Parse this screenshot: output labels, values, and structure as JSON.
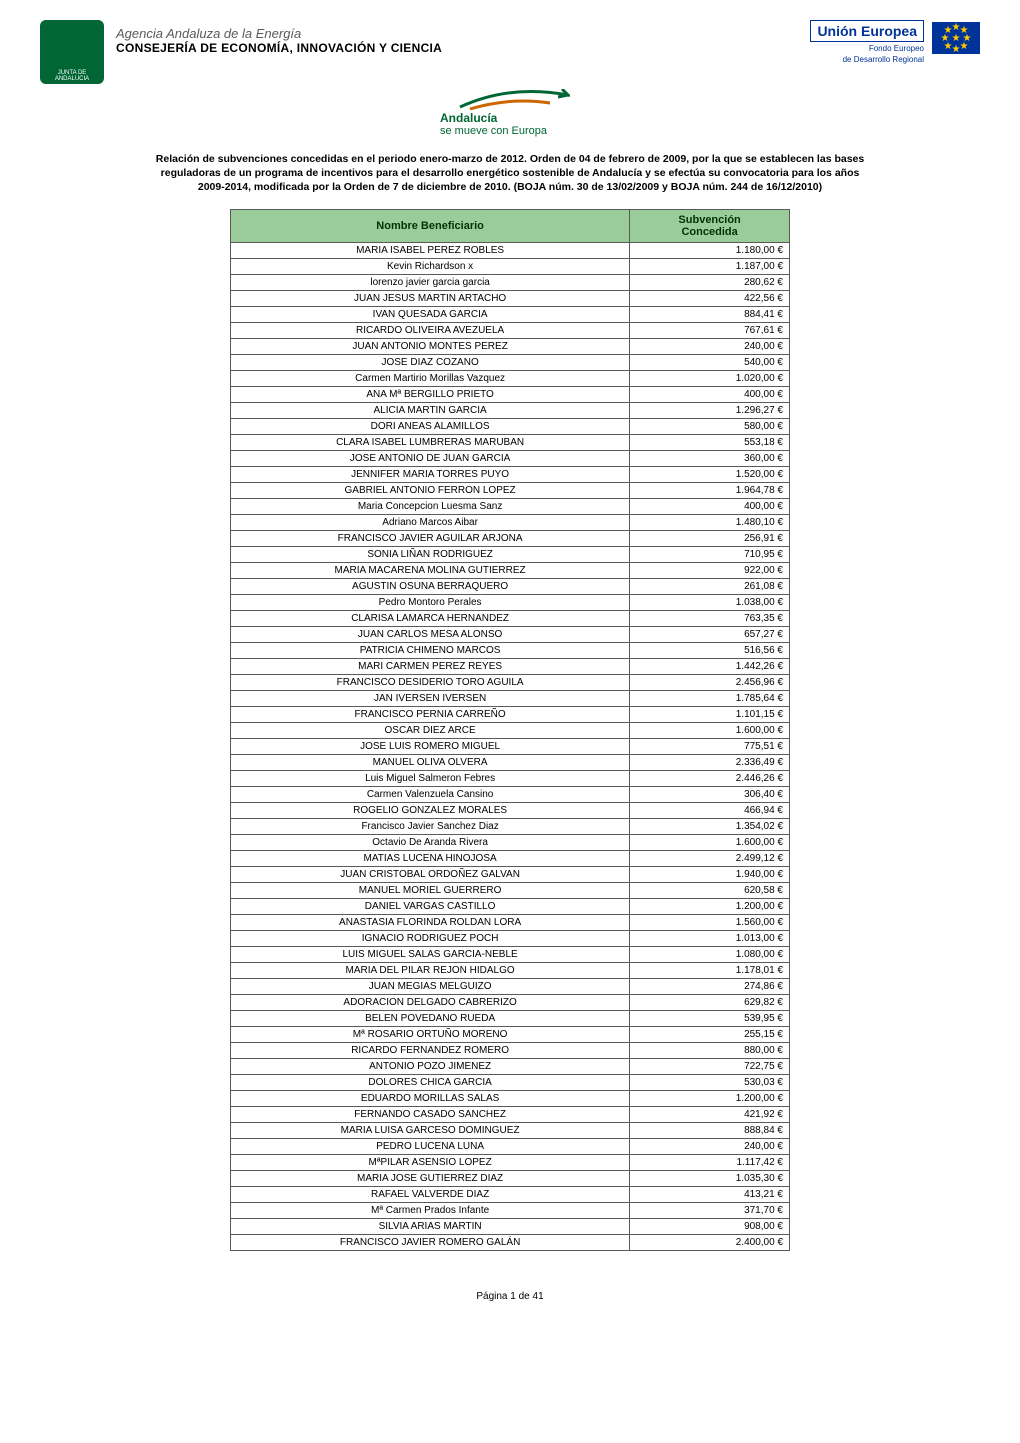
{
  "header": {
    "junta_label": "JUNTA DE ANDALUCIA",
    "agencia_line1": "Agencia Andaluza de la Energía",
    "agencia_line2": "CONSEJERÍA DE ECONOMÍA, INNOVACIÓN Y CIENCIA",
    "ue_label": "Unión Europea",
    "fondo_line1": "Fondo Europeo",
    "fondo_line2": "de Desarrollo Regional",
    "andalucia_line1": "Andalucía",
    "andalucia_line2": "se mueve con Europa"
  },
  "intro": "Relación de subvenciones concedidas en el periodo enero-marzo de 2012.\nOrden de 04 de febrero de 2009, por la que se establecen las bases reguladoras de un programa de incentivos para el desarrollo energético sostenible de Andalucía y se efectúa su convocatoria para los años 2009-2014, modificada por la Orden de 7 de diciembre de 2010. (BOJA núm. 30 de 13/02/2009 y BOJA núm. 244 de 16/12/2010)",
  "table": {
    "header_nombre": "Nombre Beneficiario",
    "header_sub_l1": "Subvención",
    "header_sub_l2": "Concedida",
    "colors": {
      "header_bg": "#99cc99",
      "header_fg": "#003300",
      "border": "#5a5a5a",
      "row_bg": "#ffffff"
    },
    "rows": [
      {
        "n": "MARIA ISABEL PEREZ ROBLES",
        "v": "1.180,00 €"
      },
      {
        "n": "Kevin Richardson x",
        "v": "1.187,00 €"
      },
      {
        "n": "lorenzo javier garcia garcia",
        "v": "280,62 €"
      },
      {
        "n": "JUAN JESUS MARTIN ARTACHO",
        "v": "422,56 €"
      },
      {
        "n": "IVAN QUESADA GARCIA",
        "v": "884,41 €"
      },
      {
        "n": "RICARDO OLIVEIRA AVEZUELA",
        "v": "767,61 €"
      },
      {
        "n": "JUAN ANTONIO MONTES PEREZ",
        "v": "240,00 €"
      },
      {
        "n": "JOSE DIAZ COZANO",
        "v": "540,00 €"
      },
      {
        "n": "Carmen Martirio Morillas Vazquez",
        "v": "1.020,00 €"
      },
      {
        "n": "ANA Mª BERGILLO PRIETO",
        "v": "400,00 €"
      },
      {
        "n": "ALICIA MARTIN GARCIA",
        "v": "1.296,27 €"
      },
      {
        "n": "DORI ANEAS ALAMILLOS",
        "v": "580,00 €"
      },
      {
        "n": "CLARA ISABEL LUMBRERAS  MARUBAN",
        "v": "553,18 €"
      },
      {
        "n": "JOSE ANTONIO DE JUAN GARCIA",
        "v": "360,00 €"
      },
      {
        "n": "JENNIFER MARIA TORRES PUYO",
        "v": "1.520,00 €"
      },
      {
        "n": "GABRIEL ANTONIO FERRON LOPEZ",
        "v": "1.964,78 €"
      },
      {
        "n": "Maria Concepcion  Luesma Sanz",
        "v": "400,00 €"
      },
      {
        "n": "Adriano Marcos Aibar",
        "v": "1.480,10 €"
      },
      {
        "n": "FRANCISCO JAVIER AGUILAR ARJONA",
        "v": "256,91 €"
      },
      {
        "n": "SONIA LIÑAN RODRIGUEZ",
        "v": "710,95 €"
      },
      {
        "n": "MARIA MACARENA MOLINA GUTIERREZ",
        "v": "922,00 €"
      },
      {
        "n": "AGUSTIN OSUNA BERRAQUERO",
        "v": "261,08 €"
      },
      {
        "n": "Pedro Montoro  Perales",
        "v": "1.038,00 €"
      },
      {
        "n": "CLARISA LAMARCA HERNANDEZ",
        "v": "763,35 €"
      },
      {
        "n": "JUAN CARLOS  MESA  ALONSO",
        "v": "657,27 €"
      },
      {
        "n": "PATRICIA CHIMENO MARCOS",
        "v": "516,56 €"
      },
      {
        "n": "MARI CARMEN PEREZ  REYES",
        "v": "1.442,26 €"
      },
      {
        "n": "FRANCISCO DESIDERIO TORO AGUILA",
        "v": "2.456,96 €"
      },
      {
        "n": "JAN IVERSEN IVERSEN",
        "v": "1.785,64 €"
      },
      {
        "n": "FRANCISCO PERNIA CARREÑO",
        "v": "1.101,15 €"
      },
      {
        "n": "OSCAR DIEZ ARCE",
        "v": "1.600,00 €"
      },
      {
        "n": "JOSE LUIS ROMERO MIGUEL",
        "v": "775,51 €"
      },
      {
        "n": "MANUEL OLIVA OLVERA",
        "v": "2.336,49 €"
      },
      {
        "n": "Luis Miguel Salmeron Febres",
        "v": "2.446,26 €"
      },
      {
        "n": "Carmen Valenzuela Cansino",
        "v": "306,40 €"
      },
      {
        "n": "ROGELIO GONZALEZ MORALES",
        "v": "466,94 €"
      },
      {
        "n": "Francisco Javier Sanchez Diaz",
        "v": "1.354,02 €"
      },
      {
        "n": "Octavio De Aranda Rivera",
        "v": "1.600,00 €"
      },
      {
        "n": "MATIAS LUCENA HINOJOSA",
        "v": "2.499,12 €"
      },
      {
        "n": "JUAN CRISTOBAL  ORDOÑEZ  GALVAN",
        "v": "1.940,00 €"
      },
      {
        "n": "MANUEL  MORIEL GUERRERO",
        "v": "620,58 €"
      },
      {
        "n": "DANIEL VARGAS CASTILLO",
        "v": "1.200,00 €"
      },
      {
        "n": "ANASTASIA FLORINDA ROLDAN LORA",
        "v": "1.560,00 €"
      },
      {
        "n": "IGNACIO RODRIGUEZ POCH",
        "v": "1.013,00 €"
      },
      {
        "n": "LUIS MIGUEL SALAS GARCIA-NEBLE",
        "v": "1.080,00 €"
      },
      {
        "n": "MARIA DEL PILAR REJON HIDALGO",
        "v": "1.178,01 €"
      },
      {
        "n": "JUAN MEGIAS MELGUIZO",
        "v": "274,86 €"
      },
      {
        "n": "ADORACION DELGADO CABRERIZO",
        "v": "629,82 €"
      },
      {
        "n": "BELEN POVEDANO RUEDA",
        "v": "539,95 €"
      },
      {
        "n": "Mª ROSARIO ORTUÑO MORENO",
        "v": "255,15 €"
      },
      {
        "n": "RICARDO FERNANDEZ ROMERO",
        "v": "880,00 €"
      },
      {
        "n": "ANTONIO POZO JIMENEZ",
        "v": "722,75 €"
      },
      {
        "n": "DOLORES CHICA GARCIA",
        "v": "530,03 €"
      },
      {
        "n": "EDUARDO MORILLAS SALAS",
        "v": "1.200,00 €"
      },
      {
        "n": "FERNANDO CASADO SANCHEZ",
        "v": "421,92 €"
      },
      {
        "n": "MARIA LUISA GARCESO DOMINGUEZ",
        "v": "888,84 €"
      },
      {
        "n": "PEDRO LUCENA LUNA",
        "v": "240,00 €"
      },
      {
        "n": "MªPILAR ASENSIO LOPEZ",
        "v": "1.117,42 €"
      },
      {
        "n": "MARIA JOSE GUTIERREZ DIAZ",
        "v": "1.035,30 €"
      },
      {
        "n": "RAFAEL  VALVERDE DIAZ",
        "v": "413,21 €"
      },
      {
        "n": "Mª Carmen Prados Infante",
        "v": "371,70 €"
      },
      {
        "n": "SILVIA ARIAS MARTIN",
        "v": "908,00 €"
      },
      {
        "n": "FRANCISCO JAVIER ROMERO GALÁN",
        "v": "2.400,00 €"
      }
    ]
  },
  "footer": "Página 1 de 41"
}
